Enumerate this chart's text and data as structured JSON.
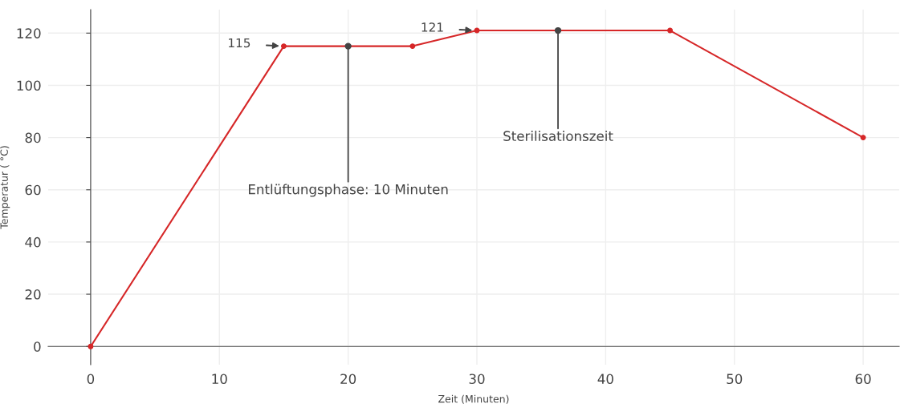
{
  "chart_data": {
    "type": "line",
    "xlabel": "Zeit (Minuten)",
    "ylabel": "Temperatur ( °C)",
    "x": [
      0,
      15,
      25,
      30,
      45,
      60
    ],
    "series": [
      {
        "color": "#d62728",
        "values": [
          0,
          115,
          115,
          121,
          121,
          80
        ]
      }
    ],
    "xlim": [
      -3.3,
      62.8
    ],
    "ylim": [
      -7,
      129
    ],
    "xticks": [
      0,
      10,
      20,
      30,
      40,
      50,
      60
    ],
    "yticks": [
      0,
      20,
      40,
      60,
      80,
      100,
      120
    ],
    "grid": true,
    "marker": "circle",
    "line_style": "solid",
    "annotations": [
      {
        "text": "115",
        "x": 15,
        "y": 115
      },
      {
        "text": "121",
        "x": 30,
        "y": 121
      },
      {
        "text": "Entlüftungsphase: 10 Minuten",
        "x": 20,
        "y": 115
      },
      {
        "text": "Sterilisationszeit",
        "x": 36.3,
        "y": 121
      }
    ]
  }
}
